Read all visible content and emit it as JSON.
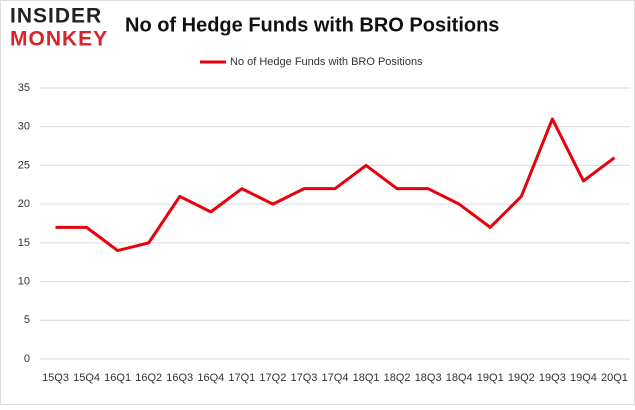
{
  "logo": {
    "line1": "INSIDER",
    "line2": "MONKEY"
  },
  "chart_data": {
    "type": "line",
    "title": "No of Hedge Funds with BRO Positions",
    "categories": [
      "15Q3",
      "15Q4",
      "16Q1",
      "16Q2",
      "16Q3",
      "16Q4",
      "17Q1",
      "17Q2",
      "17Q3",
      "17Q4",
      "18Q1",
      "18Q2",
      "18Q3",
      "18Q4",
      "19Q1",
      "19Q2",
      "19Q3",
      "19Q4",
      "20Q1"
    ],
    "series": [
      {
        "name": "No of Hedge Funds with BRO Positions",
        "color": "#e8000b",
        "values": [
          17,
          17,
          14,
          15,
          21,
          19,
          22,
          20,
          22,
          22,
          25,
          22,
          22,
          20,
          17,
          21,
          31,
          23,
          26
        ]
      }
    ],
    "ylim": [
      0,
      35
    ],
    "yticks": [
      0,
      5,
      10,
      15,
      20,
      25,
      30,
      35
    ],
    "grid": true,
    "legend": "top"
  }
}
